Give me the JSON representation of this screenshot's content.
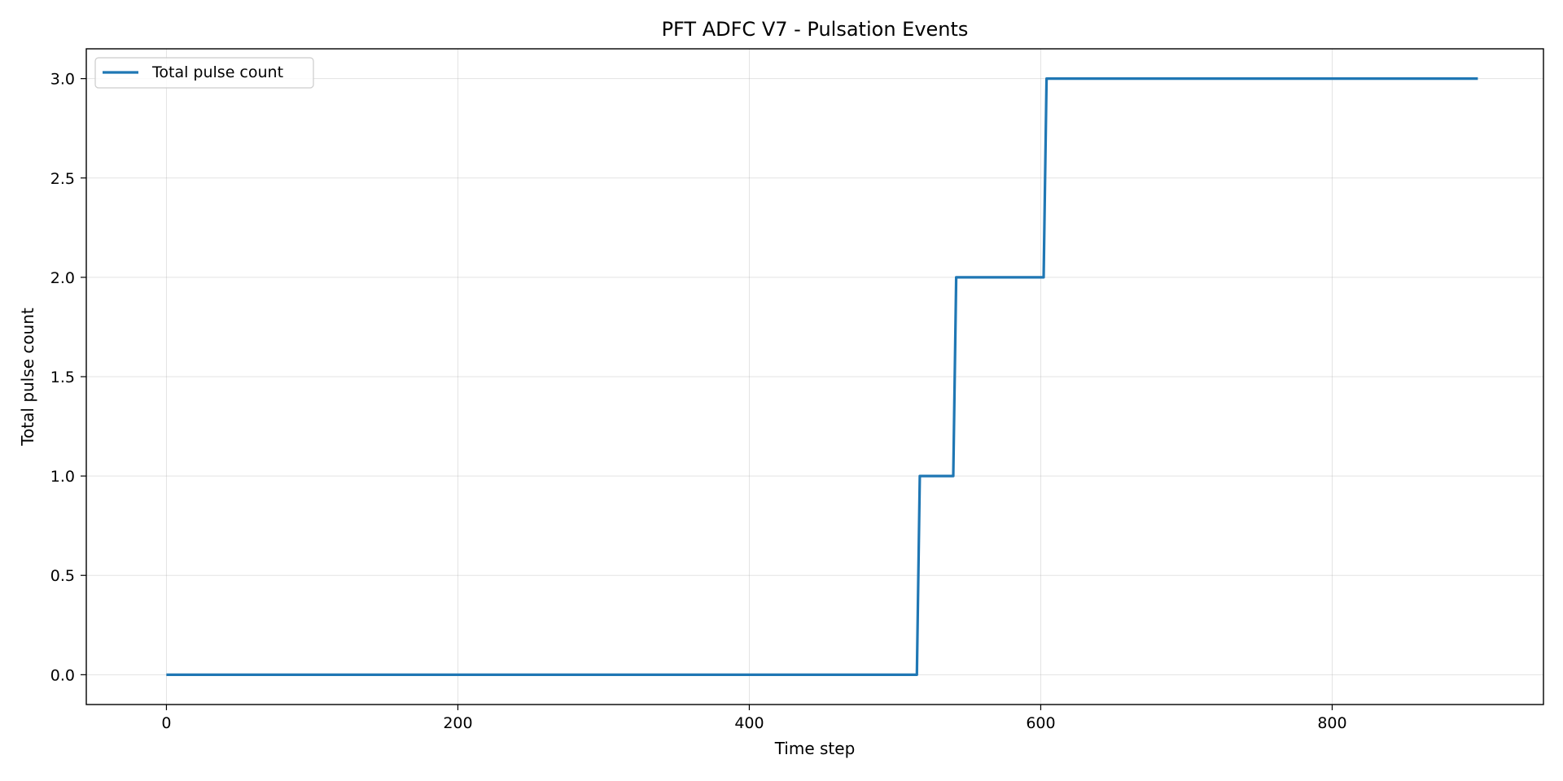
{
  "chart_data": {
    "type": "line",
    "title": "PFT ADFC V7 - Pulsation Events",
    "xlabel": "Time step",
    "ylabel": "Total pulse count",
    "xlim": [
      -55,
      945
    ],
    "ylim": [
      -0.15,
      3.15
    ],
    "xticks": [
      0,
      200,
      400,
      600,
      800
    ],
    "xtick_labels": [
      "0",
      "200",
      "400",
      "600",
      "800"
    ],
    "yticks": [
      0.0,
      0.5,
      1.0,
      1.5,
      2.0,
      2.5,
      3.0
    ],
    "ytick_labels": [
      "0.0",
      "0.5",
      "1.0",
      "1.5",
      "2.0",
      "2.5",
      "3.0"
    ],
    "grid": true,
    "legend": {
      "position": "top-left",
      "entries": [
        "Total pulse count"
      ]
    },
    "series": [
      {
        "name": "Total pulse count",
        "color": "#1f77b4",
        "x": [
          0,
          515,
          517,
          540,
          542,
          602,
          604,
          900
        ],
        "y": [
          0,
          0,
          1,
          1,
          2,
          2,
          3,
          3
        ]
      }
    ]
  }
}
